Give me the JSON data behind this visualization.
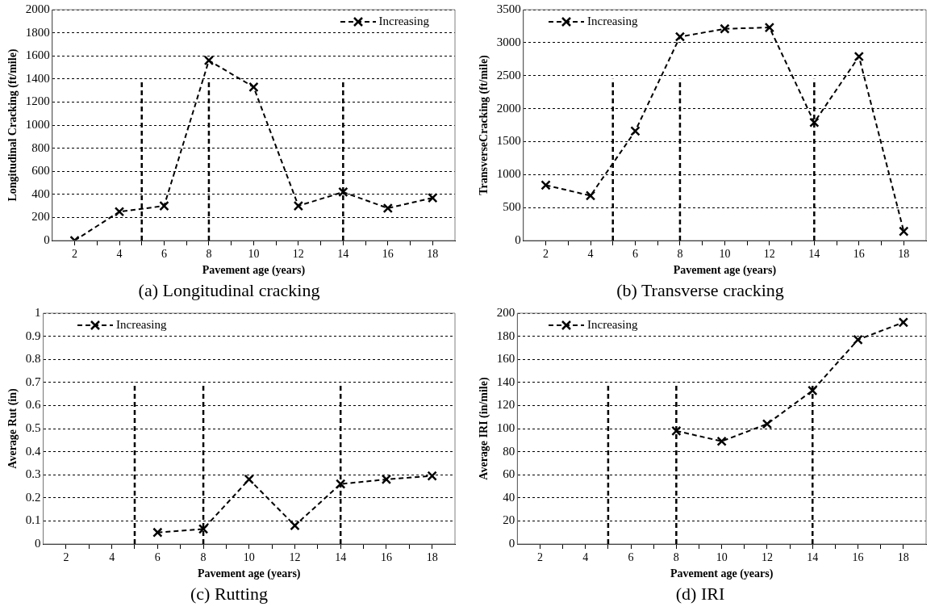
{
  "chart_data": [
    {
      "type": "line",
      "title": "(a) Longitudinal cracking",
      "xlabel": "Pavement age (years)",
      "ylabel": "Longitudinal Cracking (ft/mile)",
      "x": [
        2,
        4,
        6,
        8,
        10,
        12,
        14,
        16,
        18
      ],
      "series": [
        {
          "name": "Increasing",
          "color": "#000000",
          "values": [
            0,
            250,
            300,
            1560,
            1330,
            300,
            420,
            280,
            370
          ]
        }
      ],
      "xlim": [
        1,
        19
      ],
      "xticks": [
        2,
        {
          "value": 3,
          "label": null
        },
        4,
        {
          "value": 5,
          "label": null
        },
        6,
        {
          "value": 7,
          "label": null
        },
        8,
        {
          "value": 9,
          "label": null
        },
        10,
        {
          "value": 11,
          "label": null
        },
        12,
        {
          "value": 13,
          "label": null
        },
        14,
        {
          "value": 15,
          "label": null
        },
        16,
        {
          "value": 17,
          "label": null
        },
        18
      ],
      "ylim": [
        0,
        2000
      ],
      "yticks": [
        0,
        200,
        400,
        600,
        800,
        1000,
        1200,
        1400,
        1600,
        1800,
        2000
      ],
      "grid": "y",
      "legend": "top right",
      "marker": "cross",
      "line_style": "dashed",
      "ref_lines": [
        {
          "axis": "x",
          "value": 5,
          "color": "#000000",
          "line_style": "dashed"
        },
        {
          "axis": "x",
          "value": 8,
          "color": "#000000",
          "line_style": "dashed"
        },
        {
          "axis": "x",
          "value": 14,
          "color": "#000000",
          "line_style": "dashed"
        }
      ]
    },
    {
      "type": "line",
      "title": "(b) Transverse cracking",
      "xlabel": "Pavement age (years)",
      "ylabel": "TransverseCracking (ft/mile)",
      "x": [
        2,
        4,
        6,
        8,
        10,
        12,
        14,
        16,
        18
      ],
      "series": [
        {
          "name": "Increasing",
          "color": "#000000",
          "values": [
            840,
            680,
            1660,
            3090,
            3210,
            3230,
            1790,
            2790,
            140
          ]
        }
      ],
      "xlim": [
        1,
        19
      ],
      "xticks": [
        2,
        {
          "value": 3,
          "label": null
        },
        4,
        {
          "value": 5,
          "label": null
        },
        6,
        {
          "value": 7,
          "label": null
        },
        8,
        {
          "value": 9,
          "label": null
        },
        10,
        {
          "value": 11,
          "label": null
        },
        12,
        {
          "value": 13,
          "label": null
        },
        14,
        {
          "value": 15,
          "label": null
        },
        16,
        {
          "value": 17,
          "label": null
        },
        18
      ],
      "ylim": [
        0,
        3500
      ],
      "yticks": [
        0,
        500,
        1000,
        1500,
        2000,
        2500,
        3000,
        3500
      ],
      "grid": "y",
      "legend": "top left",
      "marker": "cross",
      "line_style": "dashed",
      "ref_lines": [
        {
          "axis": "x",
          "value": 5,
          "color": "#000000",
          "line_style": "dashed"
        },
        {
          "axis": "x",
          "value": 8,
          "color": "#000000",
          "line_style": "dashed"
        },
        {
          "axis": "x",
          "value": 14,
          "color": "#000000",
          "line_style": "dashed"
        }
      ]
    },
    {
      "type": "line",
      "title": "(c) Rutting",
      "xlabel": "Pavement age (years)",
      "ylabel": "Average Rut (in)",
      "series": [
        {
          "name": "Increasing",
          "color": "#000000",
          "x": [
            6,
            8,
            10,
            12,
            14,
            16,
            18
          ],
          "values": [
            0.05,
            0.065,
            0.28,
            0.08,
            0.26,
            0.28,
            0.295
          ]
        }
      ],
      "xlim": [
        1,
        19
      ],
      "xticks": [
        2,
        {
          "value": 3,
          "label": null
        },
        4,
        {
          "value": 5,
          "label": null
        },
        6,
        {
          "value": 7,
          "label": null
        },
        8,
        {
          "value": 9,
          "label": null
        },
        10,
        {
          "value": 11,
          "label": null
        },
        12,
        {
          "value": 13,
          "label": null
        },
        14,
        {
          "value": 15,
          "label": null
        },
        16,
        {
          "value": 17,
          "label": null
        },
        18
      ],
      "ylim": [
        0,
        1
      ],
      "yticks": [
        0,
        0.1,
        0.2,
        0.3,
        0.4,
        0.5,
        0.6,
        0.7,
        0.8,
        0.9,
        1
      ],
      "grid": "y",
      "legend": "top left",
      "marker": "cross",
      "line_style": "dashed",
      "ref_lines": [
        {
          "axis": "x",
          "value": 5,
          "color": "#000000",
          "line_style": "dashed"
        },
        {
          "axis": "x",
          "value": 8,
          "color": "#000000",
          "line_style": "dashed"
        },
        {
          "axis": "x",
          "value": 14,
          "color": "#000000",
          "line_style": "dashed"
        }
      ]
    },
    {
      "type": "line",
      "title": "(d) IRI",
      "xlabel": "Pavement age (years)",
      "ylabel": "Average IRI (in/mile)",
      "series": [
        {
          "name": "Increasing",
          "color": "#000000",
          "x": [
            8,
            10,
            12,
            14,
            16,
            18
          ],
          "values": [
            98,
            89,
            104,
            133,
            177,
            192
          ]
        }
      ],
      "xlim": [
        1,
        19
      ],
      "xticks": [
        2,
        {
          "value": 3,
          "label": null
        },
        4,
        {
          "value": 5,
          "label": null
        },
        6,
        {
          "value": 7,
          "label": null
        },
        8,
        {
          "value": 9,
          "label": null
        },
        10,
        {
          "value": 11,
          "label": null
        },
        12,
        {
          "value": 13,
          "label": null
        },
        14,
        {
          "value": 15,
          "label": null
        },
        16,
        {
          "value": 17,
          "label": null
        },
        18
      ],
      "ylim": [
        0,
        200
      ],
      "yticks": [
        0,
        20,
        40,
        60,
        80,
        100,
        120,
        140,
        160,
        180,
        200
      ],
      "grid": "y",
      "legend": "top left",
      "marker": "cross",
      "line_style": "dashed",
      "ref_lines": [
        {
          "axis": "x",
          "value": 5,
          "color": "#000000",
          "line_style": "dashed"
        },
        {
          "axis": "x",
          "value": 8,
          "color": "#000000",
          "line_style": "dashed"
        },
        {
          "axis": "x",
          "value": 14,
          "color": "#000000",
          "line_style": "dashed"
        }
      ]
    }
  ]
}
